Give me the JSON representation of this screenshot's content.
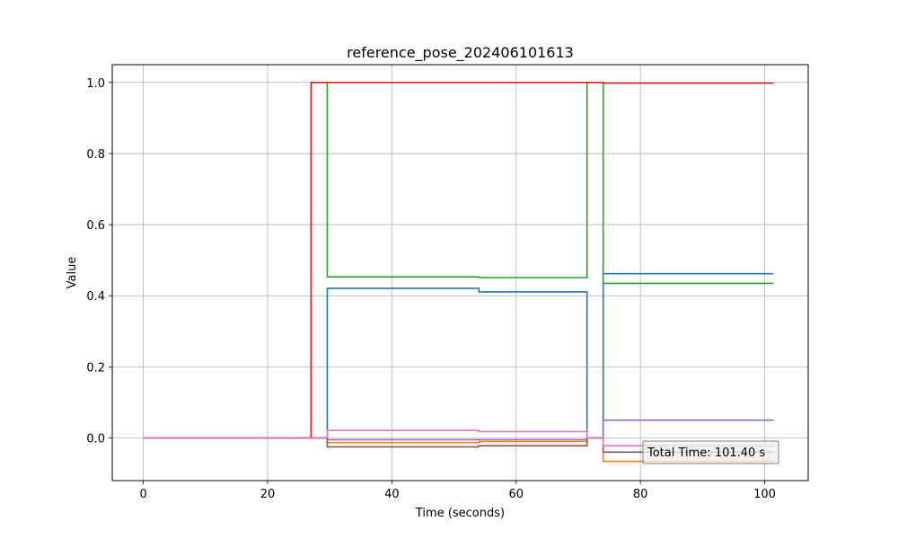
{
  "chart_data": {
    "type": "line",
    "title": "reference_pose_202406101613",
    "xlabel": "Time (seconds)",
    "ylabel": "Value",
    "xlim": [
      -5,
      107
    ],
    "ylim": [
      -0.12,
      1.05
    ],
    "xticks": [
      0,
      20,
      40,
      60,
      80,
      100
    ],
    "xtick_labels": [
      "0",
      "20",
      "40",
      "60",
      "80",
      "100"
    ],
    "yticks": [
      0.0,
      0.2,
      0.4,
      0.6,
      0.8,
      1.0
    ],
    "ytick_labels": [
      "0.0",
      "0.2",
      "0.4",
      "0.6",
      "0.8",
      "1.0"
    ],
    "grid": true,
    "step": true,
    "annotation": "Total Time: 101.40 s",
    "series": [
      {
        "color": "#1f77b4",
        "points": [
          [
            0,
            0.0
          ],
          [
            29.6,
            0.0
          ],
          [
            29.6,
            0.421
          ],
          [
            54.0,
            0.421
          ],
          [
            54.0,
            0.411
          ],
          [
            71.4,
            0.411
          ],
          [
            71.4,
            0.0
          ],
          [
            74.0,
            0.0
          ],
          [
            74.0,
            0.462
          ],
          [
            101.4,
            0.462
          ]
        ]
      },
      {
        "color": "#ff7f0e",
        "points": [
          [
            0,
            0.0
          ],
          [
            29.6,
            0.0
          ],
          [
            29.6,
            -0.013
          ],
          [
            54.0,
            -0.013
          ],
          [
            54.0,
            -0.01
          ],
          [
            71.4,
            -0.01
          ],
          [
            71.4,
            0.0
          ],
          [
            74.0,
            0.0
          ],
          [
            74.0,
            -0.066
          ],
          [
            101.4,
            -0.066
          ]
        ]
      },
      {
        "color": "#2ca02c",
        "points": [
          [
            0,
            0.0
          ],
          [
            27.0,
            0.0
          ],
          [
            27.0,
            1.0
          ],
          [
            29.6,
            1.0
          ],
          [
            29.6,
            0.453
          ],
          [
            54.0,
            0.453
          ],
          [
            54.0,
            0.451
          ],
          [
            71.4,
            0.451
          ],
          [
            71.4,
            1.0
          ],
          [
            74.0,
            1.0
          ],
          [
            74.0,
            0.435
          ],
          [
            101.4,
            0.435
          ]
        ]
      },
      {
        "color": "#d62728",
        "points": [
          [
            0,
            0.0
          ],
          [
            27.0,
            0.0
          ],
          [
            27.0,
            1.0
          ],
          [
            74.0,
            1.0
          ],
          [
            74.0,
            0.998
          ],
          [
            101.4,
            0.998
          ]
        ]
      },
      {
        "color": "#9467bd",
        "points": [
          [
            0,
            0.0
          ],
          [
            29.6,
            0.0
          ],
          [
            29.6,
            -0.005
          ],
          [
            71.4,
            -0.005
          ],
          [
            71.4,
            0.0
          ],
          [
            74.0,
            0.0
          ],
          [
            74.0,
            0.05
          ],
          [
            101.4,
            0.05
          ]
        ]
      },
      {
        "color": "#8c564b",
        "points": [
          [
            0,
            0.0
          ],
          [
            29.6,
            0.0
          ],
          [
            29.6,
            -0.025
          ],
          [
            54.0,
            -0.025
          ],
          [
            54.0,
            -0.022
          ],
          [
            71.4,
            -0.022
          ],
          [
            71.4,
            0.0
          ],
          [
            74.0,
            0.0
          ],
          [
            74.0,
            -0.04
          ],
          [
            101.4,
            -0.04
          ]
        ]
      },
      {
        "color": "#e377c2",
        "points": [
          [
            0,
            0.0
          ],
          [
            29.6,
            0.0
          ],
          [
            29.6,
            0.021
          ],
          [
            54.0,
            0.021
          ],
          [
            54.0,
            0.018
          ],
          [
            71.4,
            0.018
          ],
          [
            71.4,
            0.0
          ],
          [
            74.0,
            0.0
          ],
          [
            74.0,
            -0.022
          ],
          [
            101.4,
            -0.022
          ]
        ]
      }
    ]
  }
}
